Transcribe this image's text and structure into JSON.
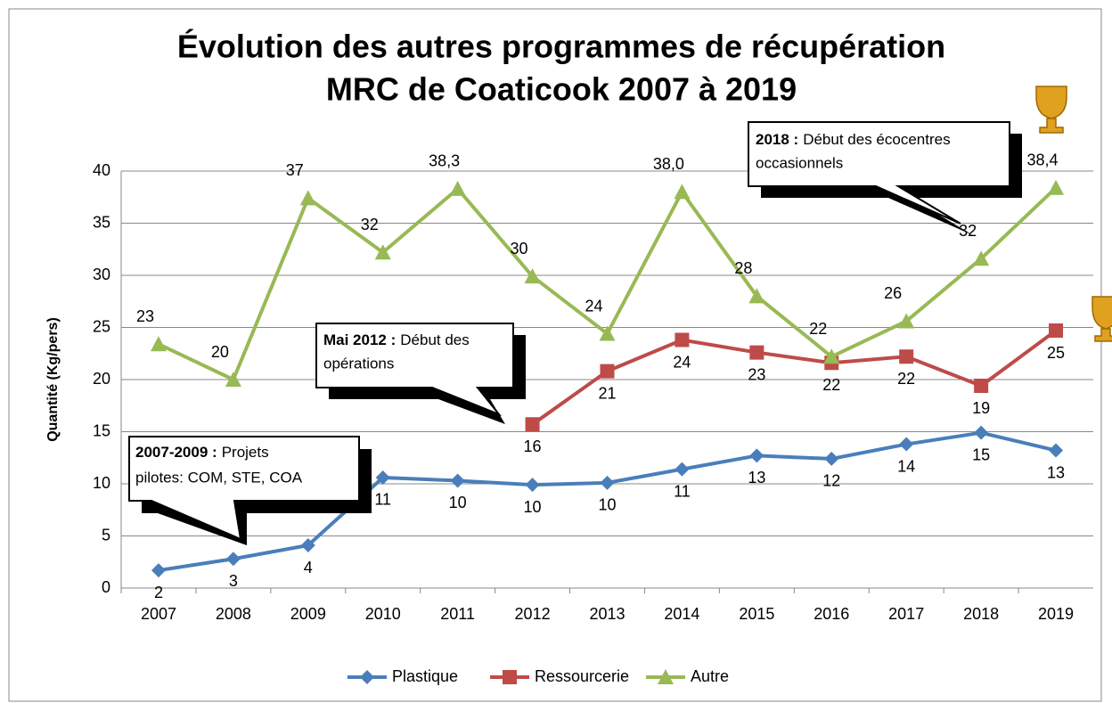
{
  "chart_data": {
    "type": "line",
    "title": [
      "Évolution des autres programmes de récupération",
      "MRC de Coaticook 2007 à 2019"
    ],
    "y_label": "Quantité  (Kg/pers)",
    "categories": [
      "2007",
      "2008",
      "2009",
      "2010",
      "2011",
      "2012",
      "2013",
      "2014",
      "2015",
      "2016",
      "2017",
      "2018",
      "2019"
    ],
    "series": [
      {
        "name": "Plastique",
        "color": "#4a7ebb",
        "marker": "diamond",
        "values": [
          1.7,
          2.8,
          4.1,
          10.6,
          10.3,
          9.9,
          10.1,
          11.4,
          12.7,
          12.4,
          13.8,
          14.9,
          13.2
        ],
        "value_labels": [
          "2",
          "3",
          "4",
          "11",
          "10",
          "10",
          "10",
          "11",
          "13",
          "12",
          "14",
          "15",
          "13"
        ]
      },
      {
        "name": "Ressourcerie",
        "color": "#be4b48",
        "marker": "square",
        "values": [
          null,
          null,
          null,
          null,
          null,
          15.7,
          20.8,
          23.8,
          22.6,
          21.6,
          22.2,
          19.4,
          24.7
        ],
        "value_labels": [
          null,
          null,
          null,
          null,
          null,
          "16",
          "21",
          "24",
          "23",
          "22",
          "22",
          "19",
          "25"
        ]
      },
      {
        "name": "Autre",
        "color": "#98b954",
        "marker": "triangle",
        "values": [
          23.4,
          20.0,
          37.4,
          32.2,
          38.3,
          29.9,
          24.4,
          38.0,
          28.0,
          22.2,
          25.6,
          31.6,
          38.4
        ],
        "value_labels": [
          "23",
          "20",
          "37",
          "32",
          "38,3",
          "30",
          "24",
          "38,0",
          "28",
          "22",
          "26",
          "32",
          "38,4"
        ]
      }
    ],
    "ylim": [
      0,
      40
    ],
    "yticks": [
      0,
      5,
      10,
      15,
      20,
      25,
      30,
      35,
      40
    ],
    "grid": true,
    "legend": "bottom",
    "annotations": [
      {
        "bold": "2018 :",
        "text": [
          "Début des écocentres",
          "occasionnels"
        ]
      },
      {
        "bold": "Mai 2012 :",
        "text": [
          "Début des",
          "opérations"
        ]
      },
      {
        "bold": "2007-2009 :",
        "text": [
          "Projets",
          "pilotes: COM, STE, COA"
        ]
      }
    ]
  }
}
